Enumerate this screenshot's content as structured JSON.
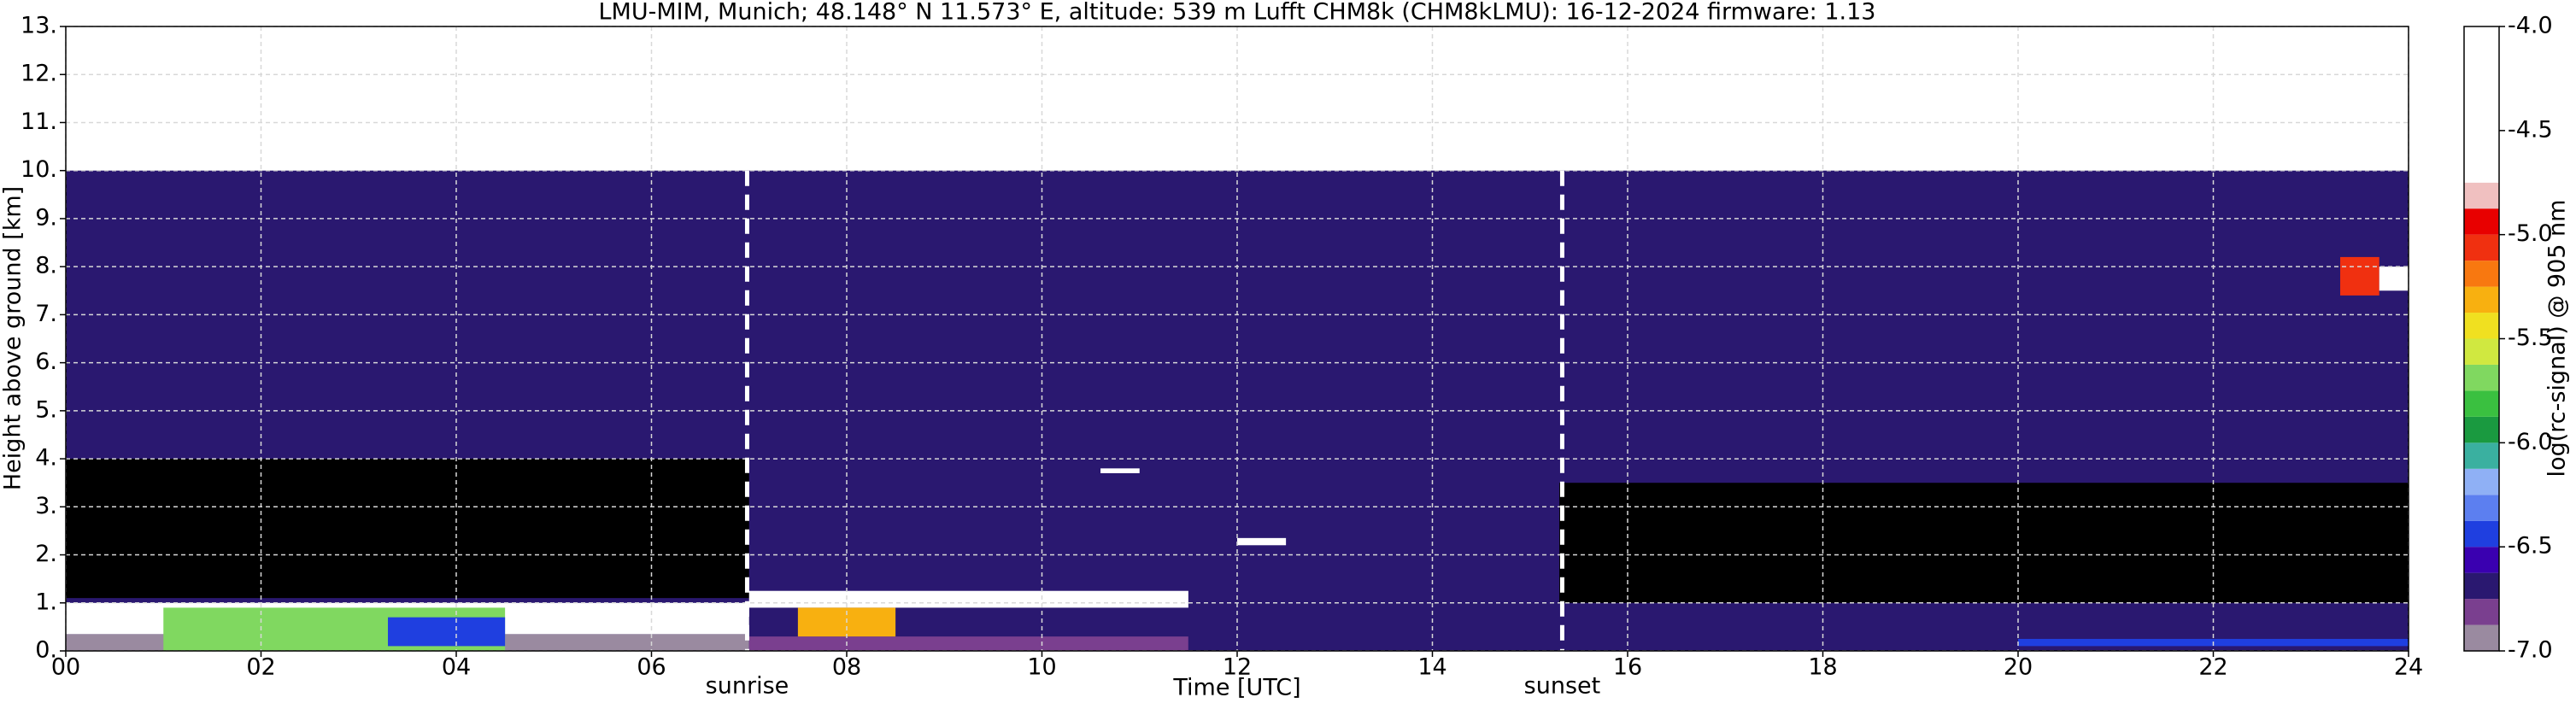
{
  "chart_data": {
    "type": "heatmap",
    "title": "LMU-MIM, Munich; 48.148° N 11.573° E, altitude: 539 m    Lufft CHM8k (CHM8kLMU): 16-12-2024    firmware: 1.13",
    "x_label": "Time [UTC]",
    "y_label": "Height above ground [km]",
    "colorbar_label": "log(rc-signal) @ 905 nm",
    "xlim": [
      0,
      24
    ],
    "ylim": [
      0,
      13
    ],
    "xticks": [
      {
        "value": 0,
        "label": "00"
      },
      {
        "value": 2,
        "label": "02"
      },
      {
        "value": 4,
        "label": "04"
      },
      {
        "value": 6,
        "label": "06"
      },
      {
        "value": 8,
        "label": "08"
      },
      {
        "value": 10,
        "label": "10"
      },
      {
        "value": 12,
        "label": "12"
      },
      {
        "value": 14,
        "label": "14"
      },
      {
        "value": 16,
        "label": "16"
      },
      {
        "value": 18,
        "label": "18"
      },
      {
        "value": 20,
        "label": "20"
      },
      {
        "value": 22,
        "label": "22"
      },
      {
        "value": 24,
        "label": "24"
      }
    ],
    "yticks": [
      {
        "value": 0,
        "label": "0."
      },
      {
        "value": 1,
        "label": "1."
      },
      {
        "value": 2,
        "label": "2."
      },
      {
        "value": 3,
        "label": "3."
      },
      {
        "value": 4,
        "label": "4."
      },
      {
        "value": 5,
        "label": "5."
      },
      {
        "value": 6,
        "label": "6."
      },
      {
        "value": 7,
        "label": "7."
      },
      {
        "value": 8,
        "label": "8."
      },
      {
        "value": 9,
        "label": "9."
      },
      {
        "value": 10,
        "label": "10."
      },
      {
        "value": 11,
        "label": "11."
      },
      {
        "value": 12,
        "label": "12."
      },
      {
        "value": 13,
        "label": "13."
      }
    ],
    "clim": [
      -7,
      -4
    ],
    "cticks": [
      {
        "value": -7,
        "label": "-7.0"
      },
      {
        "value": -6.5,
        "label": "-6.5"
      },
      {
        "value": -6,
        "label": "-6.0"
      },
      {
        "value": -5.5,
        "label": "-5.5"
      },
      {
        "value": -5,
        "label": "-5.0"
      },
      {
        "value": -4.5,
        "label": "-4.5"
      },
      {
        "value": -4,
        "label": "-4.0"
      }
    ],
    "levels": [
      -7,
      -6.875,
      -6.75,
      -6.625,
      -6.5,
      -6.375,
      -6.25,
      -6.125,
      -6,
      -5.875,
      -5.75,
      -5.625,
      -5.5,
      -5.375,
      -5.25,
      -5.125,
      -5,
      -4.875,
      -4.75,
      -4
    ],
    "colors": [
      "#9a8aa0",
      "#7a3f8f",
      "#2a1870",
      "#3a00b0",
      "#1f3fe0",
      "#5c7ff0",
      "#8fb0f5",
      "#3ab0a0",
      "#1a9a40",
      "#3ac040",
      "#80d860",
      "#d0e840",
      "#f0e020",
      "#f8b010",
      "#f87810",
      "#f03010",
      "#e80000",
      "#f0c0c0",
      "#ffffff"
    ],
    "under_color": "#000000",
    "grid": true,
    "cells": [
      {
        "x": [
          0,
          24
        ],
        "y": [
          0,
          10
        ],
        "value": -6.65
      },
      {
        "x": [
          0,
          7
        ],
        "y": [
          1.1,
          4
        ],
        "value": -7.2
      },
      {
        "x": [
          15.3,
          24
        ],
        "y": [
          1,
          3.5
        ],
        "value": -7.05
      },
      {
        "x": [
          0,
          7
        ],
        "y": [
          0,
          0.35
        ],
        "value": -6.9
      },
      {
        "x": [
          0,
          7
        ],
        "y": [
          0.35,
          1.0
        ],
        "value": -4.5
      },
      {
        "x": [
          1,
          4.5
        ],
        "y": [
          0,
          0.9
        ],
        "value": -5.7
      },
      {
        "x": [
          3.3,
          4.5
        ],
        "y": [
          0.1,
          0.7
        ],
        "value": -6.45
      },
      {
        "x": [
          7,
          11.5
        ],
        "y": [
          0,
          0.3
        ],
        "value": -6.8
      },
      {
        "x": [
          7,
          11.5
        ],
        "y": [
          0.9,
          1.25
        ],
        "value": -4.5
      },
      {
        "x": [
          7.5,
          8.5
        ],
        "y": [
          0.3,
          0.9
        ],
        "value": -5.3
      },
      {
        "x": [
          11.5,
          24
        ],
        "y": [
          0,
          0.3
        ],
        "value": -6.7
      },
      {
        "x": [
          20,
          24
        ],
        "y": [
          0.1,
          0.25
        ],
        "value": -6.45
      },
      {
        "x": [
          12,
          12.5
        ],
        "y": [
          2.2,
          2.35
        ],
        "value": -4.5
      },
      {
        "x": [
          10.6,
          11
        ],
        "y": [
          3.7,
          3.8
        ],
        "value": -4.5
      },
      {
        "x": [
          23.3,
          23.7
        ],
        "y": [
          7.4,
          8.2
        ],
        "value": -5.1
      },
      {
        "x": [
          23.7,
          24
        ],
        "y": [
          7.5,
          8
        ],
        "value": -4.5
      }
    ],
    "annotations": [
      {
        "text": "sunrise",
        "x": 6.98
      },
      {
        "text": "sunset",
        "x": 15.33
      }
    ]
  }
}
